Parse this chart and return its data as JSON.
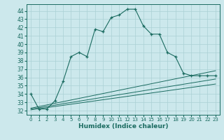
{
  "title": "",
  "xlabel": "Humidex (Indice chaleur)",
  "ylabel": "",
  "bg_color": "#cce8ec",
  "line_color": "#1a6b60",
  "grid_color": "#aad0d4",
  "xlim": [
    -0.5,
    23.5
  ],
  "ylim": [
    31.5,
    44.8
  ],
  "yticks": [
    32,
    33,
    34,
    35,
    36,
    37,
    38,
    39,
    40,
    41,
    42,
    43,
    44
  ],
  "xticks": [
    0,
    1,
    2,
    3,
    4,
    5,
    6,
    7,
    8,
    9,
    10,
    11,
    12,
    13,
    14,
    15,
    16,
    17,
    18,
    19,
    20,
    21,
    22,
    23
  ],
  "main_line": {
    "x": [
      0,
      1,
      2,
      3,
      4,
      5,
      6,
      7,
      8,
      9,
      10,
      11,
      12,
      13,
      14,
      15,
      16,
      17,
      18,
      19,
      20,
      21,
      22,
      23
    ],
    "y": [
      34.0,
      32.2,
      32.2,
      33.2,
      35.5,
      38.5,
      39.0,
      38.5,
      41.8,
      41.5,
      43.2,
      43.5,
      44.2,
      44.2,
      42.2,
      41.2,
      41.2,
      39.0,
      38.5,
      36.5,
      36.2,
      36.2,
      36.2,
      36.2
    ]
  },
  "line2": {
    "x": [
      0,
      23
    ],
    "y": [
      32.3,
      36.8
    ]
  },
  "line3": {
    "x": [
      0,
      23
    ],
    "y": [
      32.2,
      35.8
    ]
  },
  "line4": {
    "x": [
      0,
      23
    ],
    "y": [
      32.1,
      35.2
    ]
  }
}
